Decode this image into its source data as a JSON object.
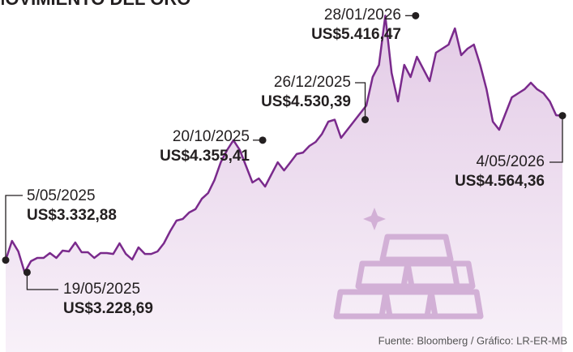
{
  "chart_data": {
    "type": "line",
    "title": "MOVIMIENTO DEL ORO",
    "source": "Fuente: Bloomberg / Gráfico: LR-ER-MB",
    "color": "#7a2a8c",
    "ylim": [
      2550,
      5550
    ],
    "values": [
      3333,
      3497,
      3407,
      3229,
      3324,
      3352,
      3352,
      3393,
      3352,
      3414,
      3407,
      3483,
      3400,
      3400,
      3352,
      3393,
      3393,
      3386,
      3476,
      3386,
      3338,
      3442,
      3386,
      3386,
      3407,
      3476,
      3580,
      3670,
      3684,
      3739,
      3767,
      3856,
      3905,
      4015,
      4167,
      4271,
      4355,
      4271,
      4133,
      3995,
      4029,
      3960,
      4064,
      4167,
      4098,
      4167,
      4237,
      4250,
      4306,
      4340,
      4409,
      4513,
      4530,
      4375,
      4444,
      4513,
      4582,
      4651,
      4893,
      4997,
      5416,
      4928,
      4686,
      4997,
      4893,
      5066,
      4962,
      4859,
      5101,
      5135,
      5170,
      5308,
      5080,
      5135,
      5170,
      4997,
      4789,
      4513,
      4444,
      4582,
      4720,
      4755,
      4789,
      4845,
      4789,
      4755,
      4686,
      4568,
      4564
    ],
    "annotations": [
      {
        "date": "5/05/2025",
        "value": 3332.88,
        "label": "US$3.332,88"
      },
      {
        "date": "19/05/2025",
        "value": 3228.69,
        "label": "US$3.228,69"
      },
      {
        "date": "20/10/2025",
        "value": 4355.41,
        "label": "US$4.355,41"
      },
      {
        "date": "26/12/2025",
        "value": 4530.39,
        "label": "US$4.530,39"
      },
      {
        "date": "28/01/2026",
        "value": 5416.47,
        "label": "US$5.416,47"
      },
      {
        "date": "4/05/2026",
        "value": 4564.36,
        "label": "US$4.564,36"
      }
    ]
  }
}
